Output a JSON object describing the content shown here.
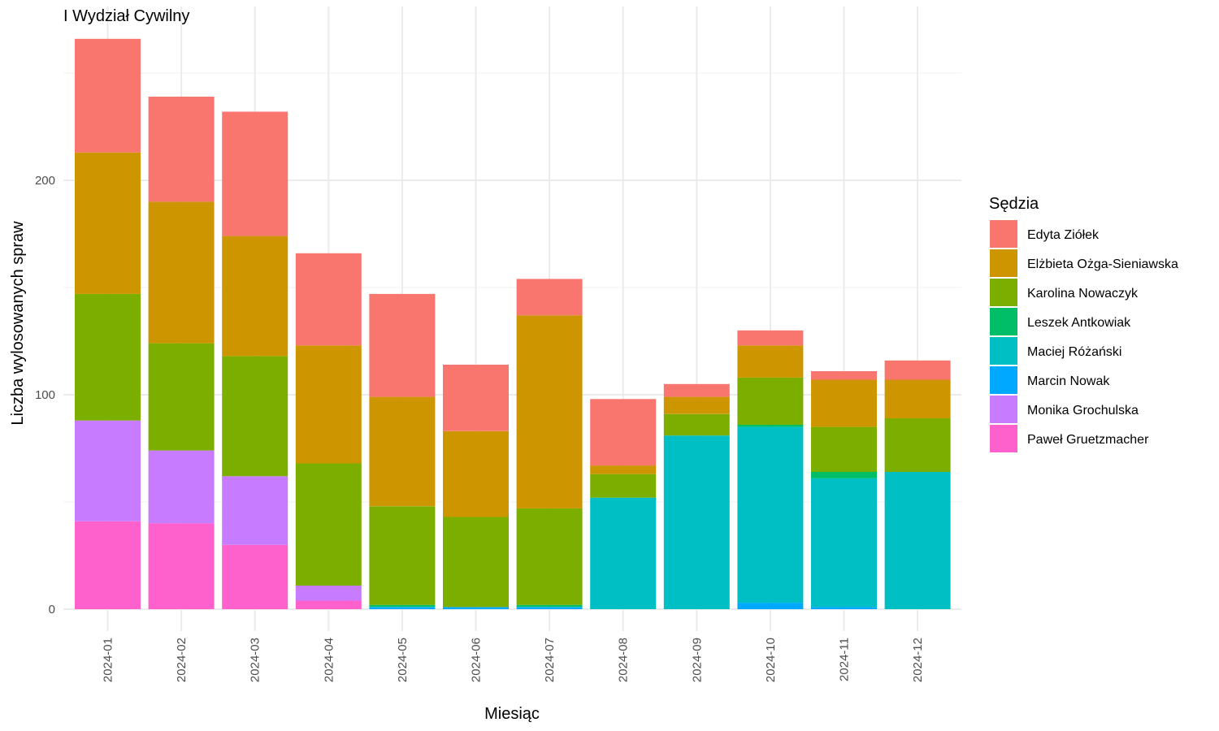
{
  "chart_data": {
    "type": "bar",
    "stacked": true,
    "title": "I Wydział Cywilny",
    "xlabel": "Miesiąc",
    "ylabel": "Liczba wylosowanych spraw",
    "ylim": [
      0,
      265
    ],
    "yticks": [
      0,
      100,
      200
    ],
    "grid": true,
    "legend": {
      "title": "Sędzia",
      "position": "right"
    },
    "categories": [
      "2024-01",
      "2024-02",
      "2024-03",
      "2024-04",
      "2024-05",
      "2024-06",
      "2024-07",
      "2024-08",
      "2024-09",
      "2024-10",
      "2024-11",
      "2024-12"
    ],
    "series": [
      {
        "name": "Paweł Gruetzmacher",
        "color": "#FF61CC",
        "values": [
          41,
          40,
          30,
          4,
          0,
          0,
          0,
          0,
          0,
          0,
          0,
          0
        ]
      },
      {
        "name": "Monika Grochulska",
        "color": "#C77CFF",
        "values": [
          47,
          34,
          32,
          7,
          0,
          0,
          0,
          0,
          0,
          0,
          0,
          0
        ]
      },
      {
        "name": "Marcin Nowak",
        "color": "#00A9FF",
        "values": [
          0,
          0,
          0,
          0,
          1,
          1,
          1,
          0,
          0,
          3,
          1,
          0
        ]
      },
      {
        "name": "Maciej Różański",
        "color": "#00BFC4",
        "values": [
          0,
          0,
          0,
          0,
          0,
          0,
          0,
          52,
          81,
          82,
          60,
          64
        ]
      },
      {
        "name": "Leszek Antkowiak",
        "color": "#00BE67",
        "values": [
          0,
          0,
          0,
          0,
          1,
          0,
          1,
          0,
          0,
          1,
          3,
          0
        ]
      },
      {
        "name": "Karolina Nowaczyk",
        "color": "#7CAE00",
        "values": [
          59,
          50,
          56,
          57,
          46,
          42,
          45,
          11,
          10,
          22,
          21,
          25
        ]
      },
      {
        "name": "Elżbieta Ożga-Sieniawska",
        "color": "#CD9600",
        "values": [
          66,
          66,
          56,
          55,
          51,
          40,
          90,
          4,
          8,
          15,
          22,
          18
        ]
      },
      {
        "name": "Edyta Ziółek",
        "color": "#F8766D",
        "values": [
          53,
          49,
          58,
          43,
          48,
          31,
          17,
          31,
          6,
          7,
          4,
          9
        ]
      }
    ],
    "legend_order": [
      "Edyta Ziółek",
      "Elżbieta Ożga-Sieniawska",
      "Karolina Nowaczyk",
      "Leszek Antkowiak",
      "Maciej Różański",
      "Marcin Nowak",
      "Monika Grochulska",
      "Paweł Gruetzmacher"
    ]
  }
}
